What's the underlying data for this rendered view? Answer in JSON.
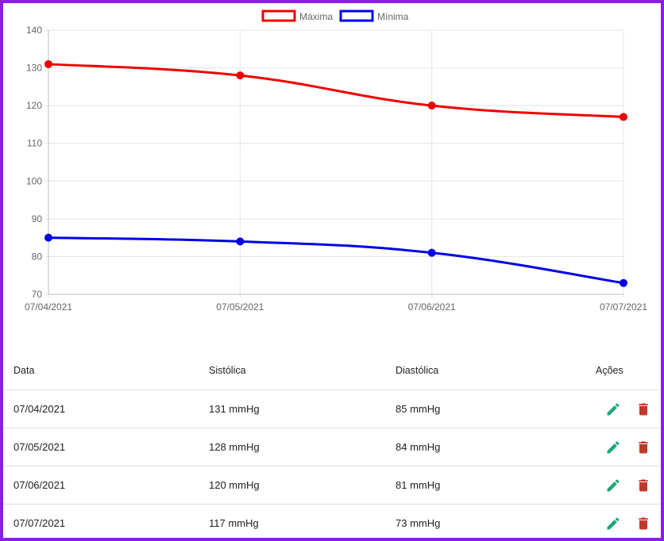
{
  "chart_data": {
    "type": "line",
    "categories": [
      "07/04/2021",
      "07/05/2021",
      "07/06/2021",
      "07/07/2021"
    ],
    "series": [
      {
        "name": "Máxima",
        "values": [
          131,
          128,
          120,
          117
        ],
        "color": "#ee0000"
      },
      {
        "name": "Mínima",
        "values": [
          85,
          84,
          81,
          73
        ],
        "color": "#0000e6"
      }
    ],
    "ylim": [
      70,
      140
    ],
    "yticks": [
      70,
      80,
      90,
      100,
      110,
      120,
      130,
      140
    ],
    "grid": true,
    "legend": "top-center"
  },
  "table": {
    "headers": {
      "date": "Data",
      "systolic": "Sistólica",
      "diastolic": "Diastólica",
      "actions": "Ações"
    },
    "rows": [
      {
        "date": "07/04/2021",
        "systolic": "131 mmHg",
        "diastolic": "85 mmHg"
      },
      {
        "date": "07/05/2021",
        "systolic": "128 mmHg",
        "diastolic": "84 mmHg"
      },
      {
        "date": "07/06/2021",
        "systolic": "120 mmHg",
        "diastolic": "81 mmHg"
      },
      {
        "date": "07/07/2021",
        "systolic": "117 mmHg",
        "diastolic": "73 mmHg"
      }
    ],
    "icons": {
      "edit": "pencil-icon",
      "delete": "trash-icon"
    },
    "colors": {
      "edit": "#1ea67a",
      "delete": "#c0392b"
    }
  }
}
